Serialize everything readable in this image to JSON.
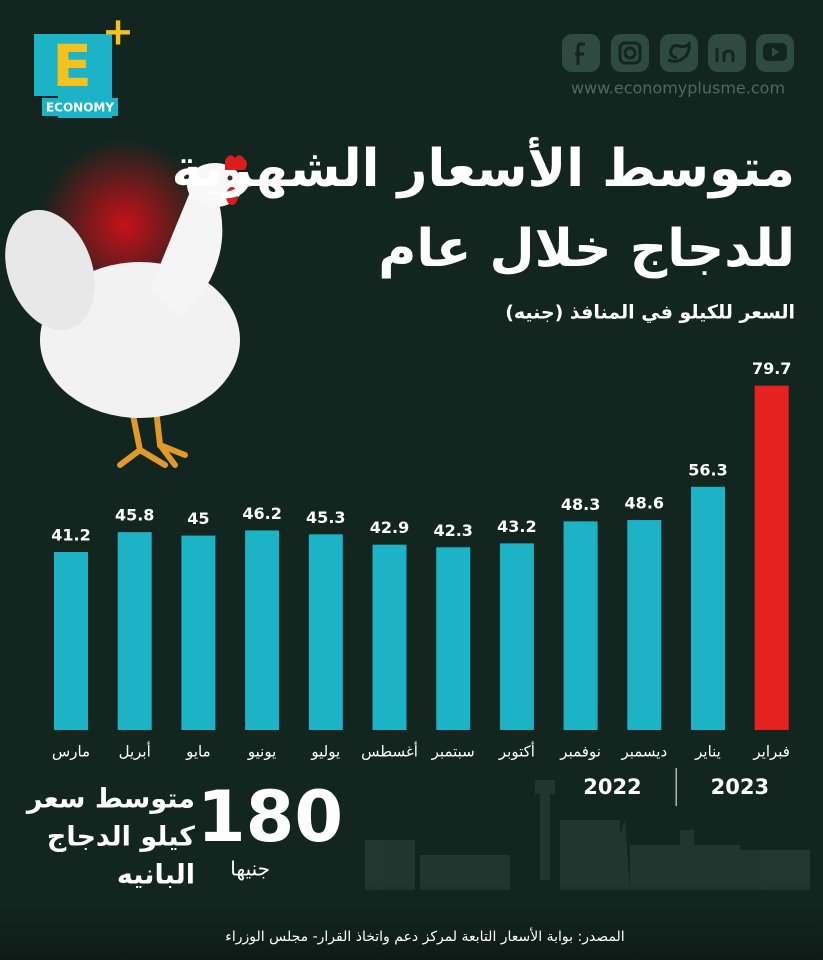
{
  "logo": {
    "letter": "E",
    "plus": "+",
    "text": "ECONOMY"
  },
  "website": "www.economyplusme.com",
  "chart_data": {
    "type": "bar",
    "title_lines": [
      "متوسط الأسعار الشهرية",
      "للدجاج خلال عام"
    ],
    "subtitle": "السعر للكيلو في المنافذ (جنيه)",
    "categories": [
      "مارس",
      "أبريل",
      "مايو",
      "يونيو",
      "يوليو",
      "أغسطس",
      "سبتمبر",
      "أكتوبر",
      "نوفمبر",
      "ديسمبر",
      "يناير",
      "فبراير"
    ],
    "values": [
      41.2,
      45.8,
      45,
      46.2,
      45.3,
      42.9,
      42.3,
      43.2,
      48.3,
      48.6,
      56.3,
      79.7
    ],
    "colors": [
      "#1bb3c5",
      "#1bb3c5",
      "#1bb3c5",
      "#1bb3c5",
      "#1bb3c5",
      "#1bb3c5",
      "#1bb3c5",
      "#1bb3c5",
      "#1bb3c5",
      "#1bb3c5",
      "#1bb3c5",
      "#e62220"
    ],
    "years": [
      "2022",
      "2023"
    ]
  },
  "highlight": {
    "value": "180",
    "unit": "جنيها",
    "lines": [
      "متوسط سعر",
      "كيلو الدجاج",
      "البانيه"
    ]
  },
  "source": "المصدر: بوابة الأسعار التابعة لمركز دعم واتخاذ القرار- مجلس الوزراء"
}
